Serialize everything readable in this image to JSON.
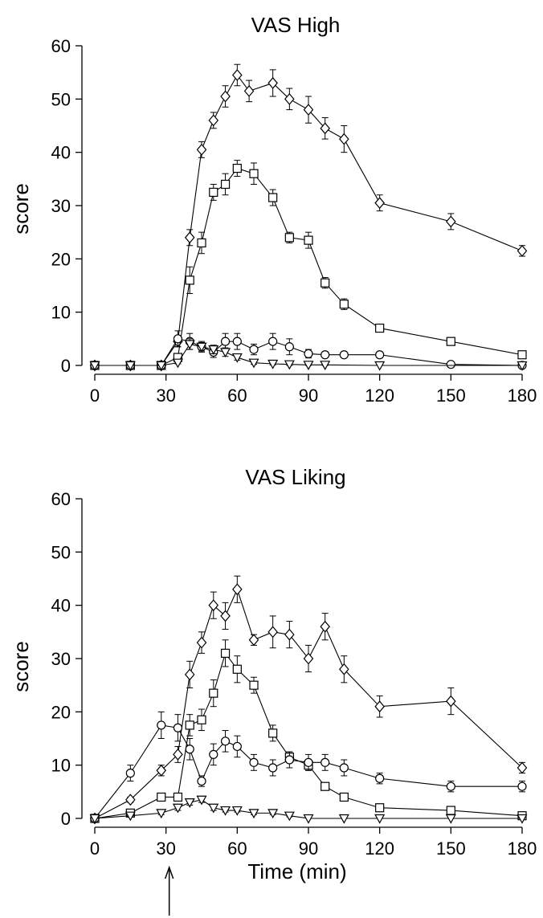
{
  "chart_data": [
    {
      "type": "line",
      "title": "VAS High",
      "ylabel": "score",
      "xlabel": "",
      "xlim": [
        0,
        180
      ],
      "ylim": [
        0,
        60
      ],
      "xticks": [
        0,
        30,
        60,
        90,
        120,
        150,
        180
      ],
      "yticks": [
        0,
        10,
        20,
        30,
        40,
        50,
        60
      ],
      "grid": false,
      "legend": "none",
      "series": [
        {
          "marker": "diamond",
          "points": [
            {
              "x": 0,
              "y": 0,
              "err": 0
            },
            {
              "x": 15,
              "y": 0,
              "err": 0
            },
            {
              "x": 28,
              "y": 0,
              "err": 0
            },
            {
              "x": 35,
              "y": 4.5,
              "err": 1
            },
            {
              "x": 40,
              "y": 24,
              "err": 1.5
            },
            {
              "x": 45,
              "y": 40.5,
              "err": 1.5
            },
            {
              "x": 50,
              "y": 46,
              "err": 1.5
            },
            {
              "x": 55,
              "y": 50.5,
              "err": 2
            },
            {
              "x": 60,
              "y": 54.5,
              "err": 2
            },
            {
              "x": 65,
              "y": 51.5,
              "err": 2
            },
            {
              "x": 75,
              "y": 53,
              "err": 2.5
            },
            {
              "x": 82,
              "y": 50,
              "err": 2
            },
            {
              "x": 90,
              "y": 48,
              "err": 2.5
            },
            {
              "x": 97,
              "y": 44.5,
              "err": 2
            },
            {
              "x": 105,
              "y": 42.5,
              "err": 2.5
            },
            {
              "x": 120,
              "y": 30.5,
              "err": 1.5
            },
            {
              "x": 150,
              "y": 27,
              "err": 1.5
            },
            {
              "x": 180,
              "y": 21.5,
              "err": 1
            }
          ]
        },
        {
          "marker": "square",
          "points": [
            {
              "x": 0,
              "y": 0,
              "err": 0
            },
            {
              "x": 15,
              "y": 0,
              "err": 0
            },
            {
              "x": 28,
              "y": 0,
              "err": 0
            },
            {
              "x": 35,
              "y": 1.5,
              "err": 0.5
            },
            {
              "x": 40,
              "y": 16,
              "err": 2.5
            },
            {
              "x": 45,
              "y": 23,
              "err": 2
            },
            {
              "x": 50,
              "y": 32.5,
              "err": 1.5
            },
            {
              "x": 55,
              "y": 34,
              "err": 2
            },
            {
              "x": 60,
              "y": 37,
              "err": 1.5
            },
            {
              "x": 67,
              "y": 36,
              "err": 2
            },
            {
              "x": 75,
              "y": 31.5,
              "err": 1.5
            },
            {
              "x": 82,
              "y": 24,
              "err": 1
            },
            {
              "x": 90,
              "y": 23.5,
              "err": 1.5
            },
            {
              "x": 97,
              "y": 15.5,
              "err": 1
            },
            {
              "x": 105,
              "y": 11.5,
              "err": 1
            },
            {
              "x": 120,
              "y": 7,
              "err": 0.5
            },
            {
              "x": 150,
              "y": 4.5,
              "err": 0.5
            },
            {
              "x": 180,
              "y": 2,
              "err": 0.3
            }
          ]
        },
        {
          "marker": "circle",
          "points": [
            {
              "x": 0,
              "y": 0,
              "err": 0
            },
            {
              "x": 15,
              "y": 0,
              "err": 0
            },
            {
              "x": 28,
              "y": 0,
              "err": 0
            },
            {
              "x": 35,
              "y": 5,
              "err": 1.5
            },
            {
              "x": 40,
              "y": 4.5,
              "err": 1.5
            },
            {
              "x": 45,
              "y": 3.5,
              "err": 1
            },
            {
              "x": 50,
              "y": 2.5,
              "err": 1
            },
            {
              "x": 55,
              "y": 4.5,
              "err": 1.5
            },
            {
              "x": 60,
              "y": 4.5,
              "err": 1.5
            },
            {
              "x": 67,
              "y": 3,
              "err": 1
            },
            {
              "x": 75,
              "y": 4.5,
              "err": 1.5
            },
            {
              "x": 82,
              "y": 3.5,
              "err": 1.5
            },
            {
              "x": 90,
              "y": 2.2,
              "err": 0.8
            },
            {
              "x": 97,
              "y": 2,
              "err": 0.5
            },
            {
              "x": 105,
              "y": 2,
              "err": 0.5
            },
            {
              "x": 120,
              "y": 2,
              "err": 0.5
            },
            {
              "x": 150,
              "y": 0.2,
              "err": 0.2
            },
            {
              "x": 180,
              "y": 0,
              "err": 0
            }
          ]
        },
        {
          "marker": "triangle-down",
          "points": [
            {
              "x": 0,
              "y": 0,
              "err": 0
            },
            {
              "x": 15,
              "y": 0,
              "err": 0
            },
            {
              "x": 28,
              "y": 0,
              "err": 0
            },
            {
              "x": 35,
              "y": 0.5,
              "err": 0.2
            },
            {
              "x": 40,
              "y": 4,
              "err": 1
            },
            {
              "x": 45,
              "y": 3.5,
              "err": 0.8
            },
            {
              "x": 50,
              "y": 3,
              "err": 0.8
            },
            {
              "x": 55,
              "y": 2.5,
              "err": 0.8
            },
            {
              "x": 60,
              "y": 1.5,
              "err": 0.5
            },
            {
              "x": 67,
              "y": 0.5,
              "err": 0.3
            },
            {
              "x": 75,
              "y": 0.3,
              "err": 0.2
            },
            {
              "x": 82,
              "y": 0.2,
              "err": 0.2
            },
            {
              "x": 90,
              "y": 0.1,
              "err": 0.1
            },
            {
              "x": 97,
              "y": 0.1,
              "err": 0.1
            },
            {
              "x": 120,
              "y": 0,
              "err": 0
            },
            {
              "x": 180,
              "y": 0,
              "err": 0
            }
          ]
        }
      ]
    },
    {
      "type": "line",
      "title": "VAS Liking",
      "ylabel": "score",
      "xlabel": "Time (min)",
      "xlim": [
        0,
        180
      ],
      "ylim": [
        0,
        60
      ],
      "xticks": [
        0,
        30,
        60,
        90,
        120,
        150,
        180
      ],
      "yticks": [
        0,
        10,
        20,
        30,
        40,
        50,
        60
      ],
      "grid": false,
      "legend": "none",
      "annotations": [
        {
          "type": "arrow",
          "x": 30,
          "direction": "up"
        }
      ],
      "series": [
        {
          "marker": "diamond",
          "points": [
            {
              "x": 0,
              "y": 0,
              "err": 0
            },
            {
              "x": 15,
              "y": 3.5,
              "err": 0.5
            },
            {
              "x": 28,
              "y": 9,
              "err": 1
            },
            {
              "x": 35,
              "y": 12,
              "err": 1.5
            },
            {
              "x": 40,
              "y": 27,
              "err": 2.5
            },
            {
              "x": 45,
              "y": 33,
              "err": 2
            },
            {
              "x": 50,
              "y": 40,
              "err": 2.5
            },
            {
              "x": 55,
              "y": 38,
              "err": 2.5
            },
            {
              "x": 60,
              "y": 43,
              "err": 2.5
            },
            {
              "x": 67,
              "y": 33.5,
              "err": 1
            },
            {
              "x": 75,
              "y": 35,
              "err": 3
            },
            {
              "x": 82,
              "y": 34.5,
              "err": 2.5
            },
            {
              "x": 90,
              "y": 30,
              "err": 2.5
            },
            {
              "x": 97,
              "y": 36,
              "err": 2.5
            },
            {
              "x": 105,
              "y": 28,
              "err": 2.5
            },
            {
              "x": 120,
              "y": 21,
              "err": 2
            },
            {
              "x": 150,
              "y": 22,
              "err": 2.5
            },
            {
              "x": 180,
              "y": 9.5,
              "err": 1
            }
          ]
        },
        {
          "marker": "square",
          "points": [
            {
              "x": 0,
              "y": 0,
              "err": 0
            },
            {
              "x": 15,
              "y": 1,
              "err": 0.3
            },
            {
              "x": 28,
              "y": 4,
              "err": 0.5
            },
            {
              "x": 35,
              "y": 4,
              "err": 0.5
            },
            {
              "x": 40,
              "y": 17.5,
              "err": 2
            },
            {
              "x": 45,
              "y": 18.5,
              "err": 2
            },
            {
              "x": 50,
              "y": 23.5,
              "err": 2.5
            },
            {
              "x": 55,
              "y": 31,
              "err": 2.5
            },
            {
              "x": 60,
              "y": 28,
              "err": 2.5
            },
            {
              "x": 67,
              "y": 25,
              "err": 1.5
            },
            {
              "x": 75,
              "y": 16,
              "err": 1.5
            },
            {
              "x": 82,
              "y": 11.5,
              "err": 1
            },
            {
              "x": 90,
              "y": 10,
              "err": 1
            },
            {
              "x": 97,
              "y": 6,
              "err": 0.5
            },
            {
              "x": 105,
              "y": 4,
              "err": 0.5
            },
            {
              "x": 120,
              "y": 2,
              "err": 0.3
            },
            {
              "x": 150,
              "y": 1.5,
              "err": 0.3
            },
            {
              "x": 180,
              "y": 0.5,
              "err": 0.2
            }
          ]
        },
        {
          "marker": "circle",
          "points": [
            {
              "x": 0,
              "y": 0,
              "err": 0
            },
            {
              "x": 15,
              "y": 8.5,
              "err": 1.5
            },
            {
              "x": 28,
              "y": 17.5,
              "err": 2.5
            },
            {
              "x": 35,
              "y": 17,
              "err": 2.5
            },
            {
              "x": 40,
              "y": 13,
              "err": 2
            },
            {
              "x": 45,
              "y": 7,
              "err": 1
            },
            {
              "x": 50,
              "y": 12,
              "err": 2
            },
            {
              "x": 55,
              "y": 14.5,
              "err": 2
            },
            {
              "x": 60,
              "y": 13.5,
              "err": 2
            },
            {
              "x": 67,
              "y": 10.5,
              "err": 1.5
            },
            {
              "x": 75,
              "y": 9.5,
              "err": 1.5
            },
            {
              "x": 82,
              "y": 11,
              "err": 1.5
            },
            {
              "x": 90,
              "y": 10.5,
              "err": 1.5
            },
            {
              "x": 97,
              "y": 10.5,
              "err": 1.5
            },
            {
              "x": 105,
              "y": 9.5,
              "err": 1.5
            },
            {
              "x": 120,
              "y": 7.5,
              "err": 1
            },
            {
              "x": 150,
              "y": 6,
              "err": 1
            },
            {
              "x": 180,
              "y": 6,
              "err": 1
            }
          ]
        },
        {
          "marker": "triangle-down",
          "points": [
            {
              "x": 0,
              "y": 0,
              "err": 0
            },
            {
              "x": 15,
              "y": 0.5,
              "err": 0.2
            },
            {
              "x": 28,
              "y": 1,
              "err": 0.3
            },
            {
              "x": 35,
              "y": 2,
              "err": 0.5
            },
            {
              "x": 40,
              "y": 3,
              "err": 0.5
            },
            {
              "x": 45,
              "y": 3.5,
              "err": 0.5
            },
            {
              "x": 50,
              "y": 2,
              "err": 0.5
            },
            {
              "x": 55,
              "y": 1.5,
              "err": 0.3
            },
            {
              "x": 60,
              "y": 1.5,
              "err": 0.3
            },
            {
              "x": 67,
              "y": 1,
              "err": 0.3
            },
            {
              "x": 75,
              "y": 1,
              "err": 0.3
            },
            {
              "x": 82,
              "y": 0.5,
              "err": 0.2
            },
            {
              "x": 90,
              "y": 0,
              "err": 0
            },
            {
              "x": 105,
              "y": 0,
              "err": 0
            },
            {
              "x": 120,
              "y": 0,
              "err": 0
            },
            {
              "x": 150,
              "y": 0,
              "err": 0
            },
            {
              "x": 180,
              "y": 0,
              "err": 0
            }
          ]
        }
      ]
    }
  ]
}
